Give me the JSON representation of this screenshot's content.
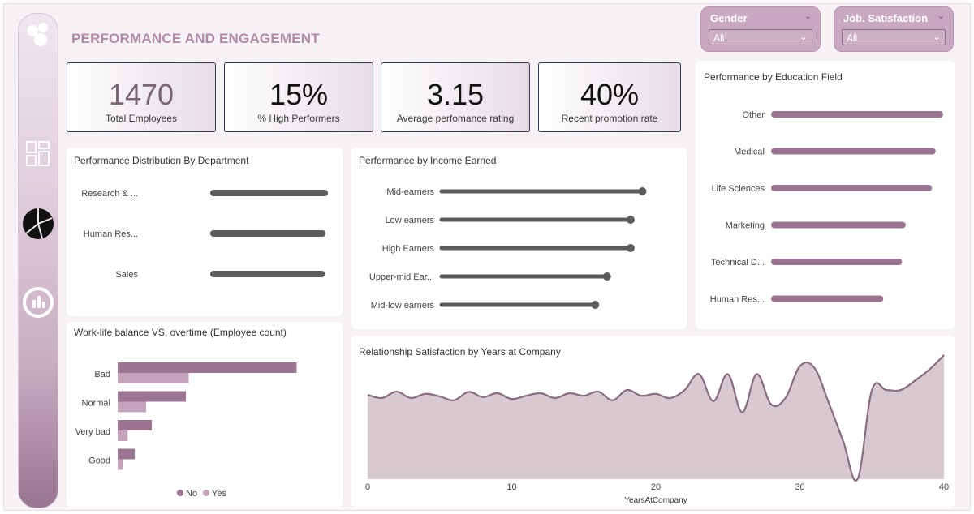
{
  "page_title": "PERFORMANCE AND ENGAGEMENT",
  "colors": {
    "accent": "#9a7592",
    "bar_dark": "#5c5a5c",
    "bar_mauve": "#9a7490",
    "no": "#9a7490",
    "yes": "#c4a2bb",
    "area_fill": "#d8c8d0",
    "area_line": "#8a6c80"
  },
  "sidebar": {
    "icons": [
      "app-logo-icon",
      "dashboard-icon",
      "pie-chart-icon",
      "gauge-icon"
    ]
  },
  "slicers": {
    "gender": {
      "label": "Gender",
      "value": "All"
    },
    "job_satisfaction": {
      "label": "Job. Satisfaction",
      "value": "All"
    }
  },
  "kpis": [
    {
      "value": "1470",
      "caption": "Total Employees"
    },
    {
      "value": "15%",
      "caption": "% High Performers"
    },
    {
      "value": "3.15",
      "caption": "Average perfomance rating"
    },
    {
      "value": "40%",
      "caption": "Recent promotion rate"
    }
  ],
  "chart_data": [
    {
      "id": "dept",
      "type": "bar",
      "orientation": "horizontal",
      "title": "Performance Distribution By Department",
      "categories": [
        "Research & ...",
        "Human Res...",
        "Sales"
      ],
      "values": [
        3.16,
        3.1,
        3.08
      ],
      "xlim": [
        0,
        3.16
      ]
    },
    {
      "id": "income",
      "type": "bar",
      "style": "lollipop",
      "orientation": "horizontal",
      "title": "Performance by Income Earned",
      "categories": [
        "Mid-earners",
        "Low earners",
        "High Earners",
        "Upper-mid Ear...",
        "Mid-low earners"
      ],
      "values": [
        3.17,
        3.16,
        3.16,
        3.14,
        3.13
      ],
      "xlim": [
        3.0,
        3.18
      ]
    },
    {
      "id": "edu",
      "type": "bar",
      "orientation": "horizontal",
      "title": "Performance by Education Field",
      "categories": [
        "Other",
        "Medical",
        "Life Sciences",
        "Marketing",
        "Technical D...",
        "Human Res..."
      ],
      "values": [
        3.18,
        3.17,
        3.165,
        3.13,
        3.125,
        3.1
      ],
      "xlim": [
        2.95,
        3.18
      ]
    },
    {
      "id": "wlb",
      "type": "bar",
      "orientation": "horizontal",
      "title": "Work-life balance  VS. overtime (Employee count)",
      "categories": [
        "Bad",
        "Normal",
        "Very bad",
        "Good"
      ],
      "series": [
        {
          "name": "No",
          "values": [
            630,
            240,
            120,
            60
          ]
        },
        {
          "name": "Yes",
          "values": [
            250,
            100,
            35,
            20
          ]
        }
      ],
      "xlim": [
        0,
        700
      ],
      "legend": [
        "No",
        "Yes"
      ]
    },
    {
      "id": "rel",
      "type": "area",
      "title": "Relationship Satisfaction by Years at Company",
      "xlabel": "YearsAtCompany",
      "ylabel": "",
      "xticks": [
        0,
        10,
        20,
        30,
        40
      ],
      "xlim": [
        0,
        40
      ],
      "ylim": [
        0,
        4
      ],
      "x": [
        0,
        1,
        2,
        3,
        4,
        5,
        6,
        7,
        8,
        9,
        10,
        11,
        12,
        13,
        14,
        15,
        16,
        17,
        18,
        19,
        20,
        21,
        22,
        23,
        24,
        25,
        26,
        27,
        28,
        29,
        30,
        31,
        32,
        33,
        34,
        35,
        36,
        37,
        38,
        39,
        40
      ],
      "y": [
        2.65,
        2.55,
        2.75,
        2.55,
        2.68,
        2.6,
        2.48,
        2.74,
        2.58,
        2.7,
        2.52,
        2.62,
        2.7,
        2.55,
        2.7,
        2.62,
        2.75,
        2.48,
        2.8,
        2.62,
        2.68,
        2.55,
        2.8,
        3.3,
        2.45,
        3.3,
        2.1,
        3.3,
        2.35,
        2.55,
        3.55,
        3.5,
        2.4,
        1.2,
        0.0,
        2.8,
        2.8,
        2.8,
        3.1,
        3.45,
        3.9
      ]
    }
  ]
}
